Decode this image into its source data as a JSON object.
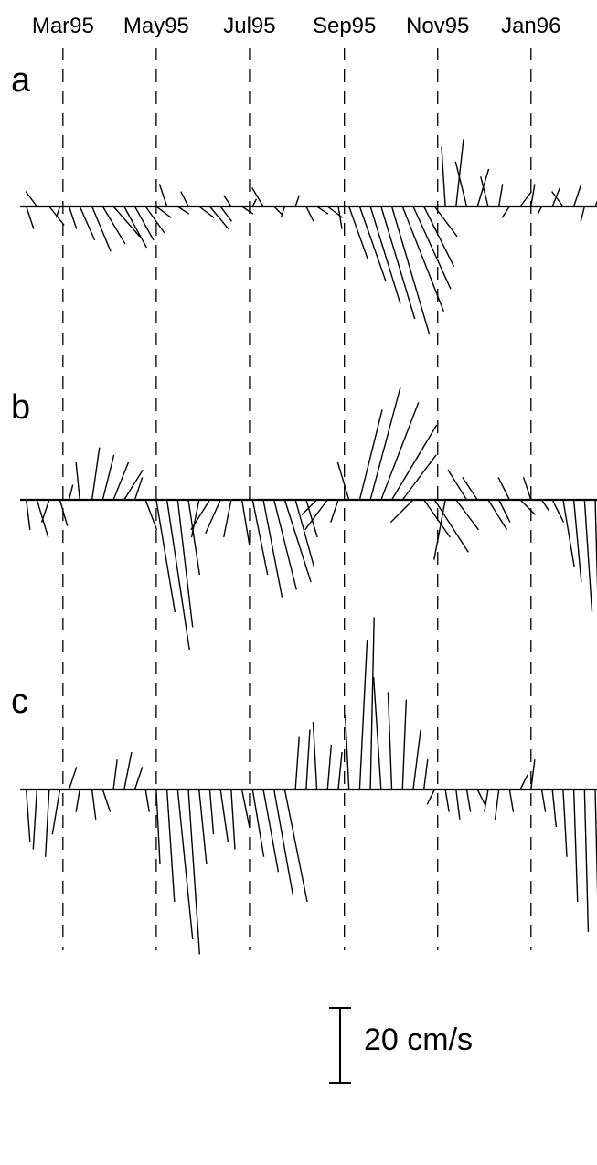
{
  "chart_data": {
    "type": "stick-plot",
    "x_axis": {
      "ticks": [
        "Mar95",
        "May95",
        "Jul95",
        "Sep95",
        "Nov95",
        "Jan96"
      ],
      "range": [
        "1995-02-01",
        "1996-02-28"
      ],
      "gridlines": "dashed-vertical"
    },
    "scale_bar": {
      "label": "20 cm/s",
      "value": 20,
      "unit": "cm/s"
    },
    "panels": [
      {
        "label": "a",
        "series": {
          "dates": [
            "1995-02-05",
            "1995-02-12",
            "1995-02-20",
            "1995-02-27",
            "1995-03-05",
            "1995-03-12",
            "1995-03-20",
            "1995-03-27",
            "1995-04-03",
            "1995-04-10",
            "1995-04-17",
            "1995-04-24",
            "1995-05-01",
            "1995-05-08",
            "1995-05-15",
            "1995-05-22",
            "1995-05-29",
            "1995-06-05",
            "1995-06-12",
            "1995-06-19",
            "1995-06-26",
            "1995-07-03",
            "1995-07-10",
            "1995-07-17",
            "1995-07-24",
            "1995-07-31",
            "1995-08-07",
            "1995-08-14",
            "1995-08-21",
            "1995-08-28",
            "1995-09-04",
            "1995-09-11",
            "1995-09-18",
            "1995-09-25",
            "1995-10-02",
            "1995-10-09",
            "1995-10-16",
            "1995-10-23",
            "1995-10-30",
            "1995-11-06",
            "1995-11-13",
            "1995-11-20",
            "1995-11-27",
            "1995-12-04",
            "1995-12-11",
            "1995-12-18",
            "1995-12-25",
            "1996-01-01",
            "1996-01-08",
            "1996-01-15",
            "1996-01-22",
            "1996-01-29",
            "1996-02-05",
            "1996-02-12",
            "1996-02-19"
          ],
          "u": [
            2,
            -3,
            4,
            -1,
            2,
            4,
            5,
            6,
            7,
            6,
            5,
            5,
            4,
            -2,
            3,
            -2,
            4,
            5,
            3,
            -2,
            3,
            1,
            -3,
            2,
            -1,
            1,
            2,
            3,
            4,
            1,
            5,
            7,
            8,
            9,
            10,
            11,
            10,
            8,
            6,
            -1,
            2,
            -3,
            3,
            -2,
            1,
            -2,
            3,
            1,
            -1,
            2,
            -3,
            2,
            -1,
            2,
            1
          ],
          "v": [
            -6,
            4,
            -5,
            -3,
            -6,
            -9,
            -12,
            -10,
            -8,
            -11,
            -9,
            -7,
            -3,
            6,
            -2,
            4,
            -3,
            -6,
            -4,
            3,
            -2,
            2,
            5,
            -2,
            -3,
            3,
            -4,
            -2,
            -3,
            -6,
            -14,
            -20,
            -26,
            -30,
            -34,
            -28,
            -22,
            -16,
            -8,
            16,
            18,
            12,
            10,
            8,
            6,
            -3,
            4,
            6,
            -2,
            5,
            4,
            6,
            -4,
            5,
            3
          ]
        }
      },
      {
        "label": "b",
        "series": {
          "dates": [
            "1995-02-05",
            "1995-02-12",
            "1995-02-20",
            "1995-02-27",
            "1995-03-05",
            "1995-03-12",
            "1995-03-20",
            "1995-03-27",
            "1995-04-03",
            "1995-04-10",
            "1995-04-17",
            "1995-04-24",
            "1995-05-01",
            "1995-05-08",
            "1995-05-15",
            "1995-05-22",
            "1995-05-29",
            "1995-06-05",
            "1995-06-12",
            "1995-06-19",
            "1995-06-26",
            "1995-07-03",
            "1995-07-10",
            "1995-07-17",
            "1995-07-24",
            "1995-07-31",
            "1995-08-07",
            "1995-08-14",
            "1995-08-21",
            "1995-08-28",
            "1995-09-04",
            "1995-09-11",
            "1995-09-18",
            "1995-09-25",
            "1995-10-02",
            "1995-10-09",
            "1995-10-16",
            "1995-10-23",
            "1995-10-30",
            "1995-11-06",
            "1995-11-13",
            "1995-11-20",
            "1995-11-27",
            "1995-12-04",
            "1995-12-11",
            "1995-12-18",
            "1995-12-25",
            "1996-01-01",
            "1996-01-08",
            "1996-01-15",
            "1996-01-22",
            "1996-01-29",
            "1996-02-05",
            "1996-02-12",
            "1996-02-19"
          ],
          "u": [
            1,
            3,
            -2,
            2,
            1,
            -1,
            2,
            3,
            4,
            5,
            2,
            3,
            5,
            6,
            4,
            3,
            -2,
            -5,
            -4,
            -2,
            2,
            4,
            5,
            6,
            7,
            5,
            3,
            -4,
            -6,
            -2,
            -3,
            6,
            8,
            10,
            12,
            9,
            -6,
            7,
            9,
            -3,
            6,
            -5,
            -4,
            5,
            3,
            -3,
            4,
            -2,
            2,
            3,
            3,
            2,
            2,
            1,
            1
          ],
          "v": [
            -8,
            -10,
            -6,
            -7,
            4,
            10,
            14,
            12,
            10,
            8,
            6,
            -8,
            -30,
            -40,
            -34,
            -20,
            -10,
            -8,
            -9,
            -10,
            -12,
            -20,
            -26,
            -24,
            -22,
            -18,
            -10,
            -4,
            -8,
            -6,
            10,
            24,
            30,
            26,
            20,
            12,
            -6,
            -10,
            -14,
            -16,
            -8,
            8,
            6,
            -8,
            -6,
            6,
            -4,
            6,
            -3,
            -6,
            -18,
            -22,
            -30,
            -38,
            -40
          ]
        }
      },
      {
        "label": "c",
        "series": {
          "dates": [
            "1995-02-05",
            "1995-02-12",
            "1995-02-20",
            "1995-02-27",
            "1995-03-05",
            "1995-03-12",
            "1995-03-20",
            "1995-03-27",
            "1995-04-03",
            "1995-04-10",
            "1995-04-17",
            "1995-04-24",
            "1995-05-01",
            "1995-05-08",
            "1995-05-15",
            "1995-05-22",
            "1995-05-29",
            "1995-06-05",
            "1995-06-12",
            "1995-06-19",
            "1995-06-26",
            "1995-07-03",
            "1995-07-10",
            "1995-07-17",
            "1995-07-24",
            "1995-07-31",
            "1995-08-07",
            "1995-08-14",
            "1995-08-21",
            "1995-08-28",
            "1995-09-04",
            "1995-09-11",
            "1995-09-18",
            "1995-09-25",
            "1995-10-02",
            "1995-10-09",
            "1995-10-16",
            "1995-10-23",
            "1995-10-30",
            "1995-11-06",
            "1995-11-13",
            "1995-11-20",
            "1995-11-27",
            "1995-12-04",
            "1995-12-11",
            "1995-12-18",
            "1995-12-25",
            "1996-01-01",
            "1996-01-08",
            "1996-01-15",
            "1996-01-22",
            "1996-01-29",
            "1996-02-05",
            "1996-02-12",
            "1996-02-19"
          ],
          "u": [
            1,
            -1,
            -1,
            -2,
            2,
            -1,
            1,
            2,
            1,
            2,
            2,
            1,
            1,
            2,
            4,
            3,
            2,
            1,
            2,
            1,
            2,
            3,
            4,
            5,
            6,
            1,
            1,
            -1,
            1,
            1,
            -1,
            2,
            1,
            -2,
            -1,
            1,
            2,
            1,
            -2,
            1,
            1,
            1,
            2,
            -1,
            -1,
            1,
            2,
            1,
            1,
            1,
            1,
            1,
            1,
            1,
            1
          ],
          "v": [
            -14,
            -16,
            -18,
            -12,
            6,
            -6,
            -8,
            -6,
            8,
            10,
            6,
            -6,
            -20,
            -30,
            -40,
            -44,
            -20,
            -12,
            -14,
            -16,
            -10,
            -18,
            -22,
            -28,
            -30,
            14,
            16,
            18,
            12,
            10,
            20,
            40,
            46,
            30,
            26,
            24,
            16,
            8,
            -4,
            -6,
            -8,
            -6,
            -4,
            -6,
            -8,
            -6,
            4,
            8,
            -6,
            -10,
            -18,
            -30,
            -38,
            -44,
            -50
          ]
        }
      }
    ]
  }
}
